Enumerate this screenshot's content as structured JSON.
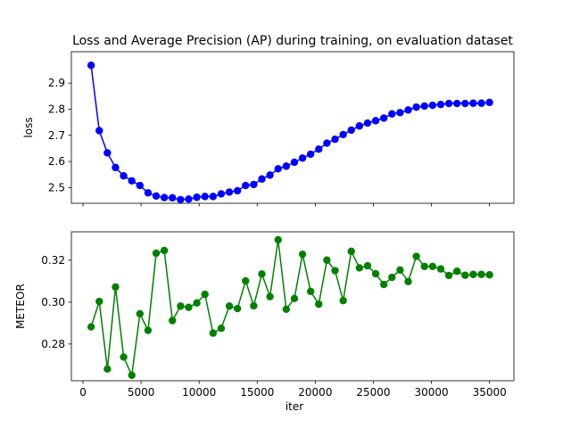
{
  "chart_data": {
    "type": "line",
    "title": "Loss and Average Precision (AP) during training, on evaluation dataset",
    "shared_xlabel": "iter",
    "x_ticks": [
      "0",
      "5000",
      "10000",
      "15000",
      "20000",
      "25000",
      "30000",
      "35000"
    ],
    "x_tick_values": [
      0,
      5000,
      10000,
      15000,
      20000,
      25000,
      30000,
      35000
    ],
    "xlim": [
      -1000,
      37100
    ],
    "grid": false,
    "subplots": [
      {
        "ylabel": "loss",
        "ylim": [
          2.44,
          3.02
        ],
        "y_ticks": [
          "2.5",
          "2.6",
          "2.7",
          "2.8",
          "2.9"
        ],
        "y_tick_values": [
          2.5,
          2.6,
          2.7,
          2.8,
          2.9
        ],
        "color": "#0000ff",
        "series": [
          {
            "x": [
              700,
              1400,
              2100,
              2800,
              3500,
              4200,
              4900,
              5600,
              6300,
              7000,
              7700,
              8400,
              9100,
              9800,
              10500,
              11200,
              11900,
              12600,
              13300,
              14000,
              14700,
              15400,
              16100,
              16800,
              17500,
              18200,
              18900,
              19600,
              20300,
              21000,
              21700,
              22400,
              23100,
              23800,
              24500,
              25200,
              25900,
              26600,
              27300,
              28000,
              28700,
              29400,
              30100,
              30800,
              31500,
              32200,
              32900,
              33600,
              34300,
              35000
            ],
            "values": [
              2.968,
              2.718,
              2.633,
              2.577,
              2.545,
              2.526,
              2.508,
              2.48,
              2.468,
              2.462,
              2.461,
              2.454,
              2.456,
              2.463,
              2.466,
              2.466,
              2.476,
              2.483,
              2.488,
              2.508,
              2.512,
              2.533,
              2.548,
              2.572,
              2.582,
              2.597,
              2.613,
              2.628,
              2.647,
              2.67,
              2.685,
              2.703,
              2.72,
              2.736,
              2.747,
              2.756,
              2.766,
              2.782,
              2.787,
              2.797,
              2.808,
              2.812,
              2.815,
              2.818,
              2.822,
              2.822,
              2.822,
              2.823,
              2.823,
              2.826
            ]
          }
        ]
      },
      {
        "ylabel": "METEOR",
        "ylim": [
          0.2625,
          0.3335
        ],
        "y_ticks": [
          "0.28",
          "0.30",
          "0.32"
        ],
        "y_tick_values": [
          0.28,
          0.3,
          0.32
        ],
        "color": "#008000",
        "series": [
          {
            "x": [
              700,
              1400,
              2100,
              2800,
              3500,
              4200,
              4900,
              5600,
              6300,
              7000,
              7700,
              8400,
              9100,
              9800,
              10500,
              11200,
              11900,
              12600,
              13300,
              14000,
              14700,
              15400,
              16100,
              16800,
              17500,
              18200,
              18900,
              19600,
              20300,
              21000,
              21700,
              22400,
              23100,
              23800,
              24500,
              25200,
              25900,
              26600,
              27300,
              28000,
              28700,
              29400,
              30100,
              30800,
              31500,
              32200,
              32900,
              33600,
              34300,
              35000
            ],
            "values": [
              0.2882,
              0.3003,
              0.2681,
              0.3072,
              0.2738,
              0.2651,
              0.2944,
              0.2865,
              0.3233,
              0.3246,
              0.2912,
              0.2981,
              0.2975,
              0.2996,
              0.3037,
              0.2852,
              0.2875,
              0.2981,
              0.2969,
              0.3101,
              0.2982,
              0.3134,
              0.3026,
              0.3297,
              0.2966,
              0.3017,
              0.3228,
              0.3051,
              0.299,
              0.32,
              0.315,
              0.3007,
              0.3242,
              0.3163,
              0.3173,
              0.3135,
              0.3084,
              0.3118,
              0.3153,
              0.3098,
              0.3218,
              0.317,
              0.317,
              0.3158,
              0.3127,
              0.3147,
              0.3128,
              0.3132,
              0.3132,
              0.313
            ]
          }
        ]
      }
    ]
  }
}
